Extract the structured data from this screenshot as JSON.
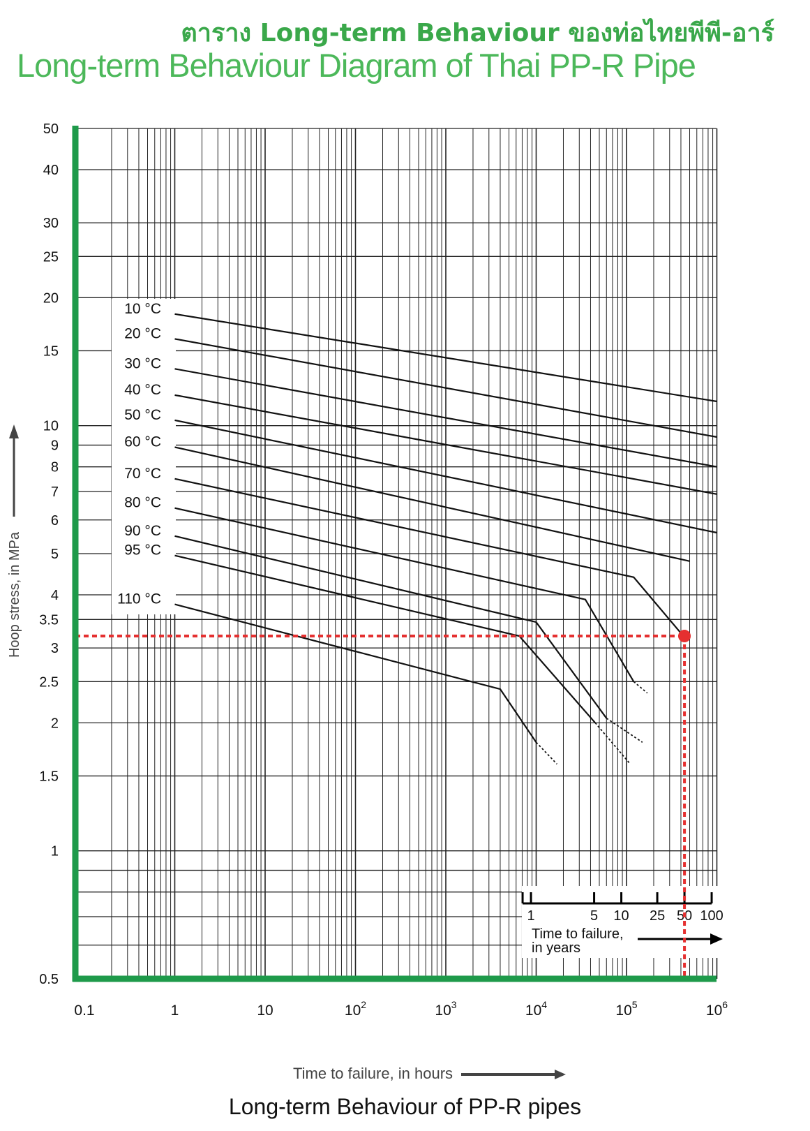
{
  "header": {
    "title_th": "ตาราง Long-term Behaviour ของท่อไทยพีพี-อาร์",
    "title_en": "Long-term Behaviour Diagram of Thai PP-R Pipe"
  },
  "caption": "Long-term Behaviour of PP-R pipes",
  "chart_data": {
    "type": "line",
    "title": "Long-term Behaviour Diagram of Thai PP-R Pipe",
    "xlabel": "Time to failure, in hours",
    "ylabel": "Hoop stress, in MPa",
    "x_scale": "log",
    "y_scale": "log",
    "xlim": [
      0.1,
      1000000
    ],
    "ylim": [
      0.5,
      50
    ],
    "grid": true,
    "x_tick_labels": [
      {
        "value": 0.1,
        "base": "0.1",
        "exp": ""
      },
      {
        "value": 1,
        "base": "1",
        "exp": ""
      },
      {
        "value": 10,
        "base": "10",
        "exp": ""
      },
      {
        "value": 100,
        "base": "10",
        "exp": "2"
      },
      {
        "value": 1000,
        "base": "10",
        "exp": "3"
      },
      {
        "value": 10000,
        "base": "10",
        "exp": "4"
      },
      {
        "value": 100000,
        "base": "10",
        "exp": "5"
      },
      {
        "value": 1000000,
        "base": "10",
        "exp": "6"
      }
    ],
    "y_tick_labels": [
      {
        "value": 50,
        "label": "50"
      },
      {
        "value": 40,
        "label": "40"
      },
      {
        "value": 30,
        "label": "30"
      },
      {
        "value": 25,
        "label": "25"
      },
      {
        "value": 20,
        "label": "20"
      },
      {
        "value": 15,
        "label": "15"
      },
      {
        "value": 10,
        "label": "10"
      },
      {
        "value": 9,
        "label": "9"
      },
      {
        "value": 8,
        "label": "8"
      },
      {
        "value": 7,
        "label": "7"
      },
      {
        "value": 6,
        "label": "6"
      },
      {
        "value": 5,
        "label": "5"
      },
      {
        "value": 4,
        "label": "4"
      },
      {
        "value": 3.5,
        "label": "3.5"
      },
      {
        "value": 3,
        "label": "3"
      },
      {
        "value": 2.5,
        "label": "2.5"
      },
      {
        "value": 2,
        "label": "2"
      },
      {
        "value": 1.5,
        "label": "1.5"
      },
      {
        "value": 1,
        "label": "1"
      },
      {
        "value": 0.5,
        "label": "0.5"
      }
    ],
    "extra_y_gridlines": [
      0.6,
      0.7,
      0.8,
      0.9
    ],
    "years_axis": {
      "label_line1": "Time to failure,",
      "label_line2": "in years",
      "ticks": [
        {
          "label": "1",
          "hours": 8760
        },
        {
          "label": "5",
          "hours": 43800
        },
        {
          "label": "10",
          "hours": 87600
        },
        {
          "label": "25",
          "hours": 219000
        },
        {
          "label": "50",
          "hours": 438000
        },
        {
          "label": "100",
          "hours": 876000
        }
      ]
    },
    "series": [
      {
        "name": "10 °C",
        "points": [
          [
            1,
            18.3
          ],
          [
            1000000,
            11.4
          ]
        ],
        "dashed": []
      },
      {
        "name": "20 °C",
        "points": [
          [
            1,
            16.0
          ],
          [
            1000000,
            9.4
          ]
        ],
        "dashed": []
      },
      {
        "name": "30 °C",
        "points": [
          [
            1,
            13.6
          ],
          [
            1000000,
            8.0
          ]
        ],
        "dashed": []
      },
      {
        "name": "40 °C",
        "points": [
          [
            1,
            11.8
          ],
          [
            1000000,
            6.9
          ]
        ],
        "dashed": []
      },
      {
        "name": "50 °C",
        "points": [
          [
            1,
            10.3
          ],
          [
            1000000,
            5.6
          ]
        ],
        "dashed": []
      },
      {
        "name": "60 °C",
        "points": [
          [
            1,
            8.9
          ],
          [
            500000,
            4.8
          ]
        ],
        "dashed": []
      },
      {
        "name": "70 °C",
        "points": [
          [
            1,
            7.5
          ],
          [
            120000,
            4.4
          ],
          [
            400000,
            3.25
          ]
        ],
        "dashed": []
      },
      {
        "name": "80 °C",
        "points": [
          [
            1,
            6.4
          ],
          [
            35000,
            3.9
          ],
          [
            120000,
            2.5
          ]
        ],
        "dashed": [
          [
            120000,
            2.5
          ],
          [
            170000,
            2.35
          ]
        ]
      },
      {
        "name": "90 °C",
        "points": [
          [
            1,
            5.5
          ],
          [
            10000,
            3.45
          ],
          [
            60000,
            2.05
          ]
        ],
        "dashed": [
          [
            60000,
            2.05
          ],
          [
            150000,
            1.8
          ]
        ]
      },
      {
        "name": "95 °C",
        "points": [
          [
            1,
            4.95
          ],
          [
            6500,
            3.2
          ],
          [
            45000,
            2.0
          ]
        ],
        "dashed": [
          [
            45000,
            2.0
          ],
          [
            110000,
            1.6
          ]
        ]
      },
      {
        "name": "110 °C",
        "points": [
          [
            1,
            3.8
          ],
          [
            4000,
            2.4
          ],
          [
            10000,
            1.8
          ]
        ],
        "dashed": [
          [
            10000,
            1.8
          ],
          [
            17000,
            1.6
          ]
        ]
      }
    ],
    "highlight": {
      "x": 438000,
      "y": 3.2,
      "color": "#e53030"
    },
    "colors": {
      "axis": "#1e9a4a",
      "grid": "#222222",
      "line": "#111111"
    }
  }
}
